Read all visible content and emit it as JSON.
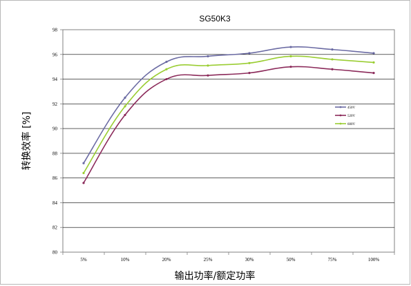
{
  "chart_data": {
    "type": "line",
    "title": "SG50K3",
    "xlabel": "输出功率/额定功率",
    "ylabel": "转换效率 [%]",
    "categories": [
      "5%",
      "10%",
      "20%",
      "25%",
      "30%",
      "50%",
      "75%",
      "100%"
    ],
    "ylim": [
      80,
      98
    ],
    "yticks": [
      80,
      82,
      84,
      86,
      88,
      90,
      92,
      94,
      96,
      98
    ],
    "grid": true,
    "legend_position": "right",
    "series": [
      {
        "name": "450V",
        "color": "#6b6ba3",
        "values": [
          87.2,
          92.5,
          95.4,
          95.85,
          96.1,
          96.6,
          96.4,
          96.1
        ]
      },
      {
        "name": "520V",
        "color": "#8b2a5a",
        "values": [
          85.6,
          91.1,
          94.0,
          94.3,
          94.5,
          95.0,
          94.8,
          94.5
        ]
      },
      {
        "name": "600V",
        "color": "#9acd32",
        "values": [
          86.4,
          91.8,
          94.8,
          95.1,
          95.3,
          95.85,
          95.6,
          95.35
        ]
      }
    ]
  }
}
